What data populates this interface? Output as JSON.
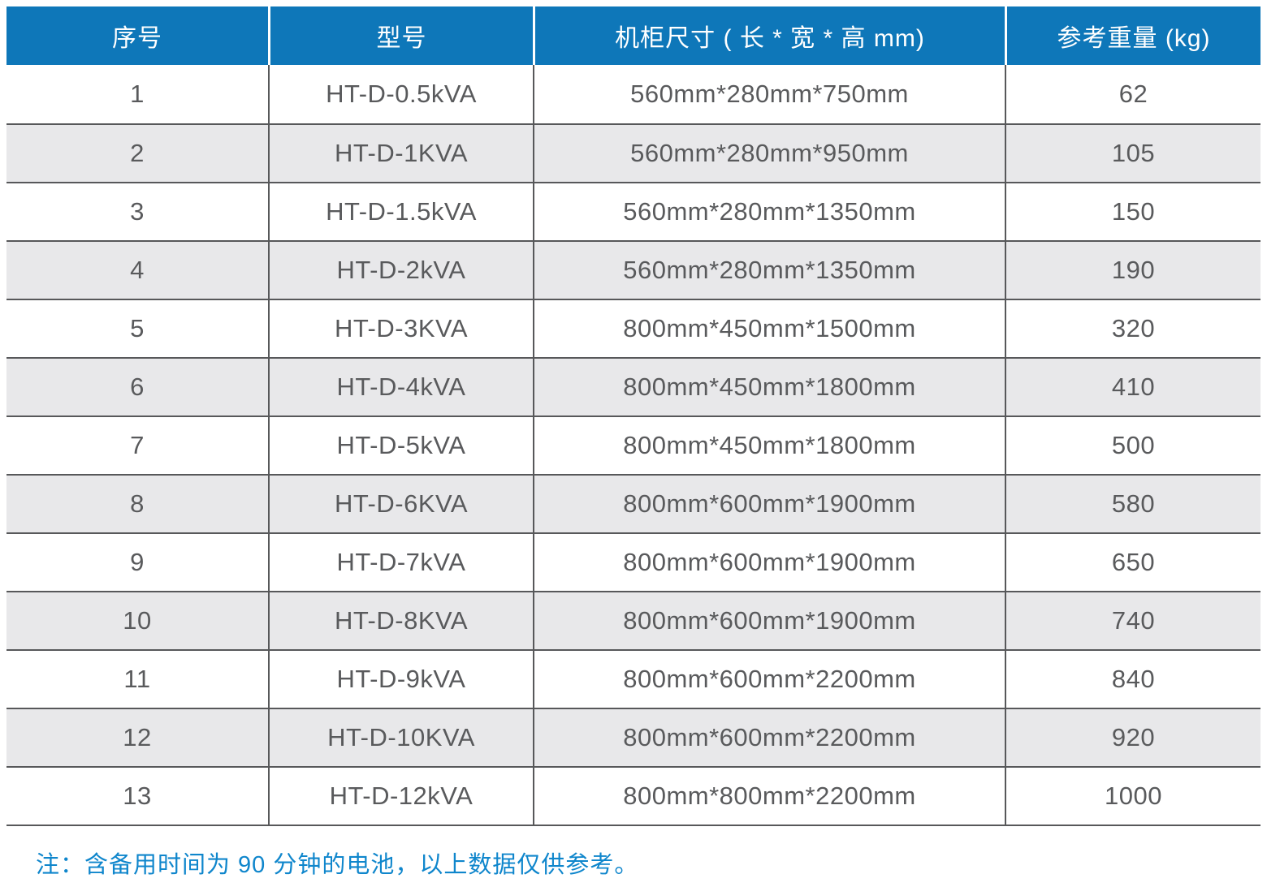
{
  "colors": {
    "header_bg": "#0e77b9",
    "stripe": "#e8e8ea",
    "border": "#57585a",
    "body_text": "#595a5c",
    "note": "#0f86cc"
  },
  "table": {
    "columns": [
      {
        "key": "index",
        "label": "序号"
      },
      {
        "key": "model",
        "label": "型号"
      },
      {
        "key": "dimensions",
        "label": "机柜尺寸 ( 长 * 宽 * 高 mm)"
      },
      {
        "key": "weight",
        "label": "参考重量 (kg)"
      }
    ],
    "rows": [
      {
        "index": "1",
        "model": "HT-D-0.5kVA",
        "dimensions": "560mm*280mm*750mm",
        "weight": "62"
      },
      {
        "index": "2",
        "model": "HT-D-1KVA",
        "dimensions": "560mm*280mm*950mm",
        "weight": "105"
      },
      {
        "index": "3",
        "model": "HT-D-1.5kVA",
        "dimensions": "560mm*280mm*1350mm",
        "weight": "150"
      },
      {
        "index": "4",
        "model": "HT-D-2kVA",
        "dimensions": "560mm*280mm*1350mm",
        "weight": "190"
      },
      {
        "index": "5",
        "model": "HT-D-3KVA",
        "dimensions": "800mm*450mm*1500mm",
        "weight": "320"
      },
      {
        "index": "6",
        "model": "HT-D-4kVA",
        "dimensions": "800mm*450mm*1800mm",
        "weight": "410"
      },
      {
        "index": "7",
        "model": "HT-D-5kVA",
        "dimensions": "800mm*450mm*1800mm",
        "weight": "500"
      },
      {
        "index": "8",
        "model": "HT-D-6KVA",
        "dimensions": "800mm*600mm*1900mm",
        "weight": "580"
      },
      {
        "index": "9",
        "model": "HT-D-7kVA",
        "dimensions": "800mm*600mm*1900mm",
        "weight": "650"
      },
      {
        "index": "10",
        "model": "HT-D-8KVA",
        "dimensions": "800mm*600mm*1900mm",
        "weight": "740"
      },
      {
        "index": "11",
        "model": "HT-D-9kVA",
        "dimensions": "800mm*600mm*2200mm",
        "weight": "840"
      },
      {
        "index": "12",
        "model": "HT-D-10KVA",
        "dimensions": "800mm*600mm*2200mm",
        "weight": "920"
      },
      {
        "index": "13",
        "model": "HT-D-12kVA",
        "dimensions": "800mm*800mm*2200mm",
        "weight": "1000"
      }
    ]
  },
  "footnote": {
    "text": "注：含备用时间为 90 分钟的电池，以上数据仅供参考。"
  }
}
